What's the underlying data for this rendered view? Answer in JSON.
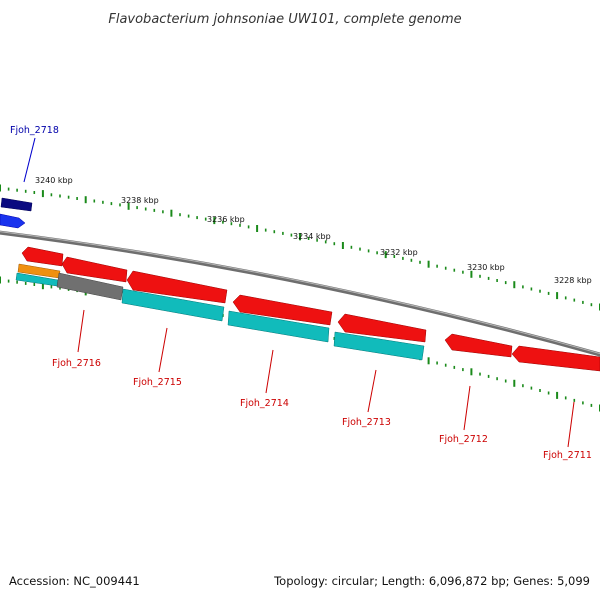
{
  "title": "Flavobacterium johnsoniae UW101, complete genome",
  "footer": {
    "accession": "Accession: NC_009441",
    "topology": "Topology: circular; Length: 6,096,872 bp; Genes: 5,099"
  },
  "ruler_labels": [
    "3240 kbp",
    "3238 kbp",
    "3236 kbp",
    "3234 kbp",
    "3232 kbp",
    "3230 kbp",
    "3228 kbp"
  ],
  "gene_labels": {
    "fjoh_2718": "Fjoh_2718",
    "fjoh_2716": "Fjoh_2716",
    "fjoh_2715": "Fjoh_2715",
    "fjoh_2714": "Fjoh_2714",
    "fjoh_2713": "Fjoh_2713",
    "fjoh_2712": "Fjoh_2712",
    "fjoh_2711": "Fjoh_2711"
  },
  "colors": {
    "backbone": "#7a7a7a",
    "cds": "#ee1111",
    "gene_track": "#11bbbb",
    "highlight_cds": "#0000cc",
    "ruler_tick": "#1a8a1a",
    "forward_label": "#0000aa",
    "reverse_label": "#cc0000"
  }
}
